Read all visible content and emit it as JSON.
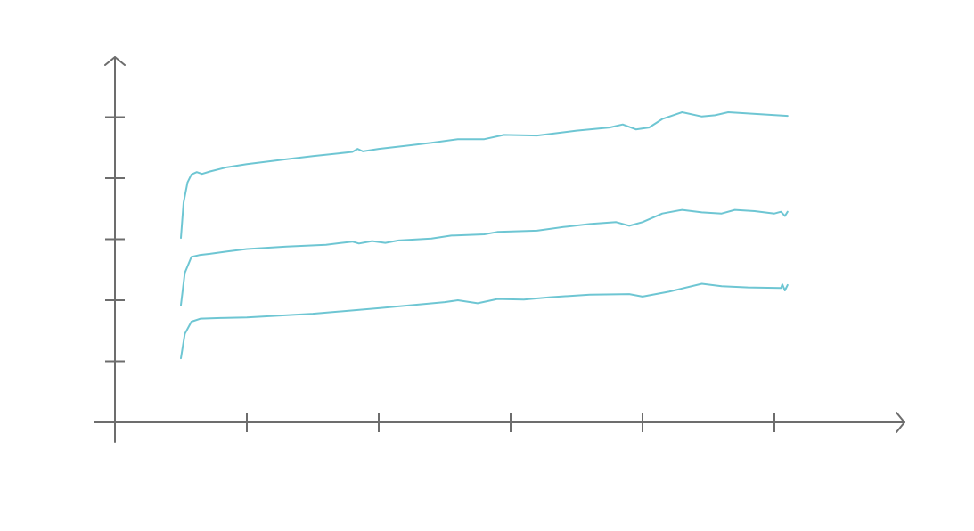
{
  "chart_data": {
    "type": "line",
    "title": "",
    "xlabel": "",
    "ylabel": "",
    "grid": false,
    "legend": "none",
    "xlim": [
      0,
      6
    ],
    "ylim": [
      0,
      6
    ],
    "x_tick_values": [
      1,
      2,
      3,
      4,
      5
    ],
    "y_tick_values": [
      1,
      2,
      3,
      4,
      5
    ],
    "colors": {
      "axis": "#6d6d6d",
      "series": "#6ec6d3"
    },
    "series": [
      {
        "values": [
          [
            0.5,
            3.02
          ],
          [
            0.52,
            3.6
          ],
          [
            0.55,
            3.93
          ],
          [
            0.58,
            4.06
          ],
          [
            0.62,
            4.1
          ],
          [
            0.66,
            4.07
          ],
          [
            0.72,
            4.11
          ],
          [
            0.85,
            4.18
          ],
          [
            1.0,
            4.23
          ],
          [
            1.15,
            4.27
          ],
          [
            1.3,
            4.31
          ],
          [
            1.5,
            4.36
          ],
          [
            1.8,
            4.43
          ],
          [
            1.84,
            4.48
          ],
          [
            1.88,
            4.44
          ],
          [
            2.0,
            4.48
          ],
          [
            2.2,
            4.53
          ],
          [
            2.4,
            4.58
          ],
          [
            2.6,
            4.64
          ],
          [
            2.8,
            4.64
          ],
          [
            2.95,
            4.71
          ],
          [
            3.2,
            4.7
          ],
          [
            3.5,
            4.78
          ],
          [
            3.75,
            4.83
          ],
          [
            3.85,
            4.88
          ],
          [
            3.95,
            4.8
          ],
          [
            4.05,
            4.83
          ],
          [
            4.15,
            4.97
          ],
          [
            4.3,
            5.08
          ],
          [
            4.45,
            5.01
          ],
          [
            4.55,
            5.03
          ],
          [
            4.65,
            5.08
          ],
          [
            4.8,
            5.06
          ],
          [
            5.1,
            5.02
          ]
        ]
      },
      {
        "values": [
          [
            0.5,
            1.92
          ],
          [
            0.53,
            2.45
          ],
          [
            0.58,
            2.71
          ],
          [
            0.64,
            2.74
          ],
          [
            0.72,
            2.76
          ],
          [
            0.85,
            2.8
          ],
          [
            1.0,
            2.84
          ],
          [
            1.3,
            2.88
          ],
          [
            1.6,
            2.91
          ],
          [
            1.8,
            2.96
          ],
          [
            1.85,
            2.93
          ],
          [
            1.95,
            2.97
          ],
          [
            2.05,
            2.94
          ],
          [
            2.15,
            2.98
          ],
          [
            2.4,
            3.01
          ],
          [
            2.55,
            3.06
          ],
          [
            2.8,
            3.08
          ],
          [
            2.9,
            3.12
          ],
          [
            3.2,
            3.14
          ],
          [
            3.4,
            3.2
          ],
          [
            3.6,
            3.25
          ],
          [
            3.8,
            3.28
          ],
          [
            3.9,
            3.22
          ],
          [
            4.0,
            3.28
          ],
          [
            4.15,
            3.42
          ],
          [
            4.3,
            3.48
          ],
          [
            4.45,
            3.44
          ],
          [
            4.6,
            3.42
          ],
          [
            4.7,
            3.48
          ],
          [
            4.85,
            3.46
          ],
          [
            5.0,
            3.42
          ],
          [
            5.05,
            3.45
          ],
          [
            5.08,
            3.38
          ],
          [
            5.1,
            3.45
          ]
        ]
      },
      {
        "values": [
          [
            0.5,
            1.05
          ],
          [
            0.53,
            1.45
          ],
          [
            0.58,
            1.65
          ],
          [
            0.65,
            1.7
          ],
          [
            0.8,
            1.71
          ],
          [
            1.0,
            1.72
          ],
          [
            1.5,
            1.78
          ],
          [
            2.0,
            1.87
          ],
          [
            2.5,
            1.97
          ],
          [
            2.6,
            2.0
          ],
          [
            2.75,
            1.95
          ],
          [
            2.9,
            2.02
          ],
          [
            3.1,
            2.01
          ],
          [
            3.3,
            2.05
          ],
          [
            3.6,
            2.09
          ],
          [
            3.9,
            2.1
          ],
          [
            4.0,
            2.06
          ],
          [
            4.2,
            2.14
          ],
          [
            4.45,
            2.27
          ],
          [
            4.6,
            2.23
          ],
          [
            4.8,
            2.21
          ],
          [
            5.05,
            2.2
          ],
          [
            5.06,
            2.26
          ],
          [
            5.08,
            2.16
          ],
          [
            5.1,
            2.25
          ]
        ]
      }
    ]
  }
}
